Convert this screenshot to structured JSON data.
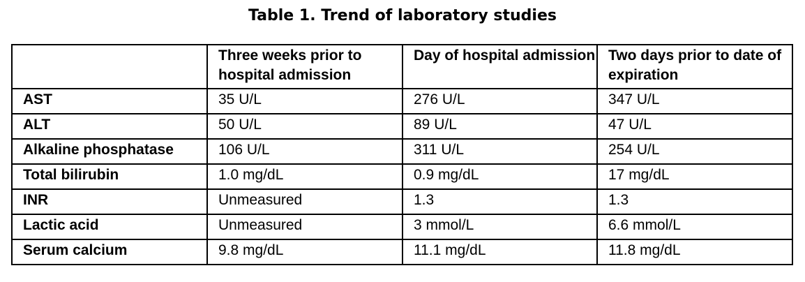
{
  "caption": "Table 1. Trend of laboratory studies",
  "table": {
    "headers": [
      "",
      "Three weeks prior to hospital admission",
      "Day of hospital admission",
      "Two days prior to date of expiration"
    ],
    "rows": [
      [
        "AST",
        "35 U/L",
        "276 U/L",
        "347 U/L"
      ],
      [
        "ALT",
        "50 U/L",
        "89 U/L",
        "47 U/L"
      ],
      [
        "Alkaline phosphatase",
        "106 U/L",
        "311 U/L",
        "254 U/L"
      ],
      [
        "Total bilirubin",
        "1.0 mg/dL",
        "0.9 mg/dL",
        "17 mg/dL"
      ],
      [
        "INR",
        "Unmeasured",
        "1.3",
        "1.3"
      ],
      [
        "Lactic acid",
        "Unmeasured",
        "3 mmol/L",
        "6.6 mmol/L"
      ],
      [
        "Serum calcium",
        "9.8 mg/dL",
        "11.1 mg/dL",
        "11.8 mg/dL"
      ]
    ]
  }
}
